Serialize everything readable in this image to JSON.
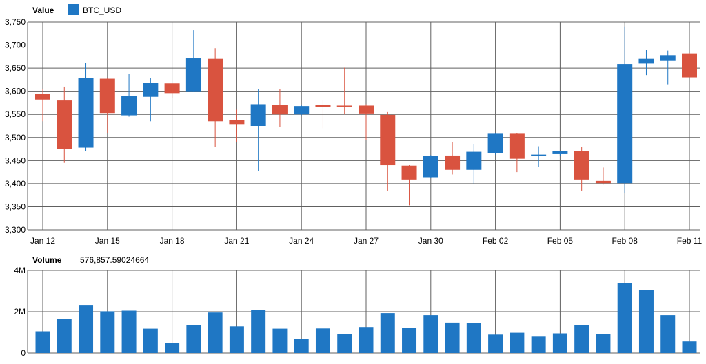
{
  "chart_data": [
    {
      "type": "candlestick",
      "header_label": "Value",
      "series": [
        {
          "name": "BTC_USD",
          "color": "#1f77c4"
        }
      ],
      "up_color": "#1f77c4",
      "down_color": "#d9533f",
      "ylim": [
        3300,
        3750
      ],
      "y_ticks": [
        "3,300",
        "3,350",
        "3,400",
        "3,450",
        "3,500",
        "3,550",
        "3,600",
        "3,650",
        "3,700",
        "3,750"
      ],
      "y_tick_values": [
        3300,
        3350,
        3400,
        3450,
        3500,
        3550,
        3600,
        3650,
        3700,
        3750
      ],
      "x_ticks": [
        {
          "label": "Jan 12",
          "index": 0
        },
        {
          "label": "Jan 15",
          "index": 3
        },
        {
          "label": "Jan 18",
          "index": 6
        },
        {
          "label": "Jan 21",
          "index": 9
        },
        {
          "label": "Jan 24",
          "index": 12
        },
        {
          "label": "Jan 27",
          "index": 15
        },
        {
          "label": "Jan 30",
          "index": 18
        },
        {
          "label": "Feb 02",
          "index": 21
        },
        {
          "label": "Feb 05",
          "index": 24
        },
        {
          "label": "Feb 08",
          "index": 27
        },
        {
          "label": "Feb 11",
          "index": 30
        }
      ],
      "grid": true,
      "candles": [
        {
          "date": "Jan 12",
          "open": 3595,
          "high": 3605,
          "low": 3535,
          "close": 3582
        },
        {
          "date": "Jan 13",
          "open": 3580,
          "high": 3610,
          "low": 3445,
          "close": 3475
        },
        {
          "date": "Jan 14",
          "open": 3478,
          "high": 3662,
          "low": 3470,
          "close": 3628
        },
        {
          "date": "Jan 15",
          "open": 3627,
          "high": 3628,
          "low": 3510,
          "close": 3553
        },
        {
          "date": "Jan 16",
          "open": 3548,
          "high": 3637,
          "low": 3545,
          "close": 3590
        },
        {
          "date": "Jan 17",
          "open": 3588,
          "high": 3628,
          "low": 3535,
          "close": 3618
        },
        {
          "date": "Jan 18",
          "open": 3617,
          "high": 3617,
          "low": 3585,
          "close": 3596
        },
        {
          "date": "Jan 19",
          "open": 3600,
          "high": 3732,
          "low": 3598,
          "close": 3671
        },
        {
          "date": "Jan 20",
          "open": 3670,
          "high": 3693,
          "low": 3480,
          "close": 3535
        },
        {
          "date": "Jan 21",
          "open": 3537,
          "high": 3560,
          "low": 3490,
          "close": 3529
        },
        {
          "date": "Jan 22",
          "open": 3525,
          "high": 3604,
          "low": 3428,
          "close": 3572
        },
        {
          "date": "Jan 23",
          "open": 3571,
          "high": 3605,
          "low": 3522,
          "close": 3550
        },
        {
          "date": "Jan 24",
          "open": 3550,
          "high": 3570,
          "low": 3548,
          "close": 3568
        },
        {
          "date": "Jan 25",
          "open": 3571,
          "high": 3580,
          "low": 3520,
          "close": 3566
        },
        {
          "date": "Jan 26",
          "open": 3569,
          "high": 3651,
          "low": 3550,
          "close": 3568
        },
        {
          "date": "Jan 27",
          "open": 3569,
          "high": 3572,
          "low": 3495,
          "close": 3552
        },
        {
          "date": "Jan 28",
          "open": 3549,
          "high": 3555,
          "low": 3385,
          "close": 3440
        },
        {
          "date": "Jan 29",
          "open": 3439,
          "high": 3440,
          "low": 3353,
          "close": 3409
        },
        {
          "date": "Jan 30",
          "open": 3414,
          "high": 3462,
          "low": 3412,
          "close": 3460
        },
        {
          "date": "Jan 31",
          "open": 3461,
          "high": 3490,
          "low": 3420,
          "close": 3430
        },
        {
          "date": "Feb 01",
          "open": 3430,
          "high": 3486,
          "low": 3400,
          "close": 3469
        },
        {
          "date": "Feb 02",
          "open": 3466,
          "high": 3510,
          "low": 3463,
          "close": 3508
        },
        {
          "date": "Feb 03",
          "open": 3508,
          "high": 3510,
          "low": 3425,
          "close": 3454
        },
        {
          "date": "Feb 04",
          "open": 3460,
          "high": 3481,
          "low": 3436,
          "close": 3463
        },
        {
          "date": "Feb 05",
          "open": 3464,
          "high": 3470,
          "low": 3460,
          "close": 3470
        },
        {
          "date": "Feb 06",
          "open": 3471,
          "high": 3480,
          "low": 3385,
          "close": 3409
        },
        {
          "date": "Feb 07",
          "open": 3406,
          "high": 3435,
          "low": 3398,
          "close": 3401
        },
        {
          "date": "Feb 08",
          "open": 3401,
          "high": 3740,
          "low": 3380,
          "close": 3659
        },
        {
          "date": "Feb 09",
          "open": 3660,
          "high": 3690,
          "low": 3635,
          "close": 3670
        },
        {
          "date": "Feb 10",
          "open": 3667,
          "high": 3688,
          "low": 3615,
          "close": 3678
        },
        {
          "date": "Feb 11",
          "open": 3682,
          "high": 3683,
          "low": 3630,
          "close": 3630
        }
      ]
    },
    {
      "type": "bar",
      "header_label": "Volume",
      "header_value": "576,857.59024664",
      "bar_color": "#1f77c4",
      "ylim": [
        0,
        4000000
      ],
      "y_ticks": [
        "0",
        "2M",
        "4M"
      ],
      "y_tick_values": [
        0,
        2000000,
        4000000
      ],
      "grid": true,
      "values": [
        1050000,
        1650000,
        2330000,
        2020000,
        2050000,
        1180000,
        470000,
        1350000,
        1960000,
        1290000,
        2090000,
        1180000,
        680000,
        1190000,
        930000,
        1260000,
        1930000,
        1220000,
        1830000,
        1470000,
        1460000,
        890000,
        980000,
        790000,
        950000,
        1350000,
        910000,
        3400000,
        3060000,
        1830000,
        560000
      ]
    }
  ]
}
